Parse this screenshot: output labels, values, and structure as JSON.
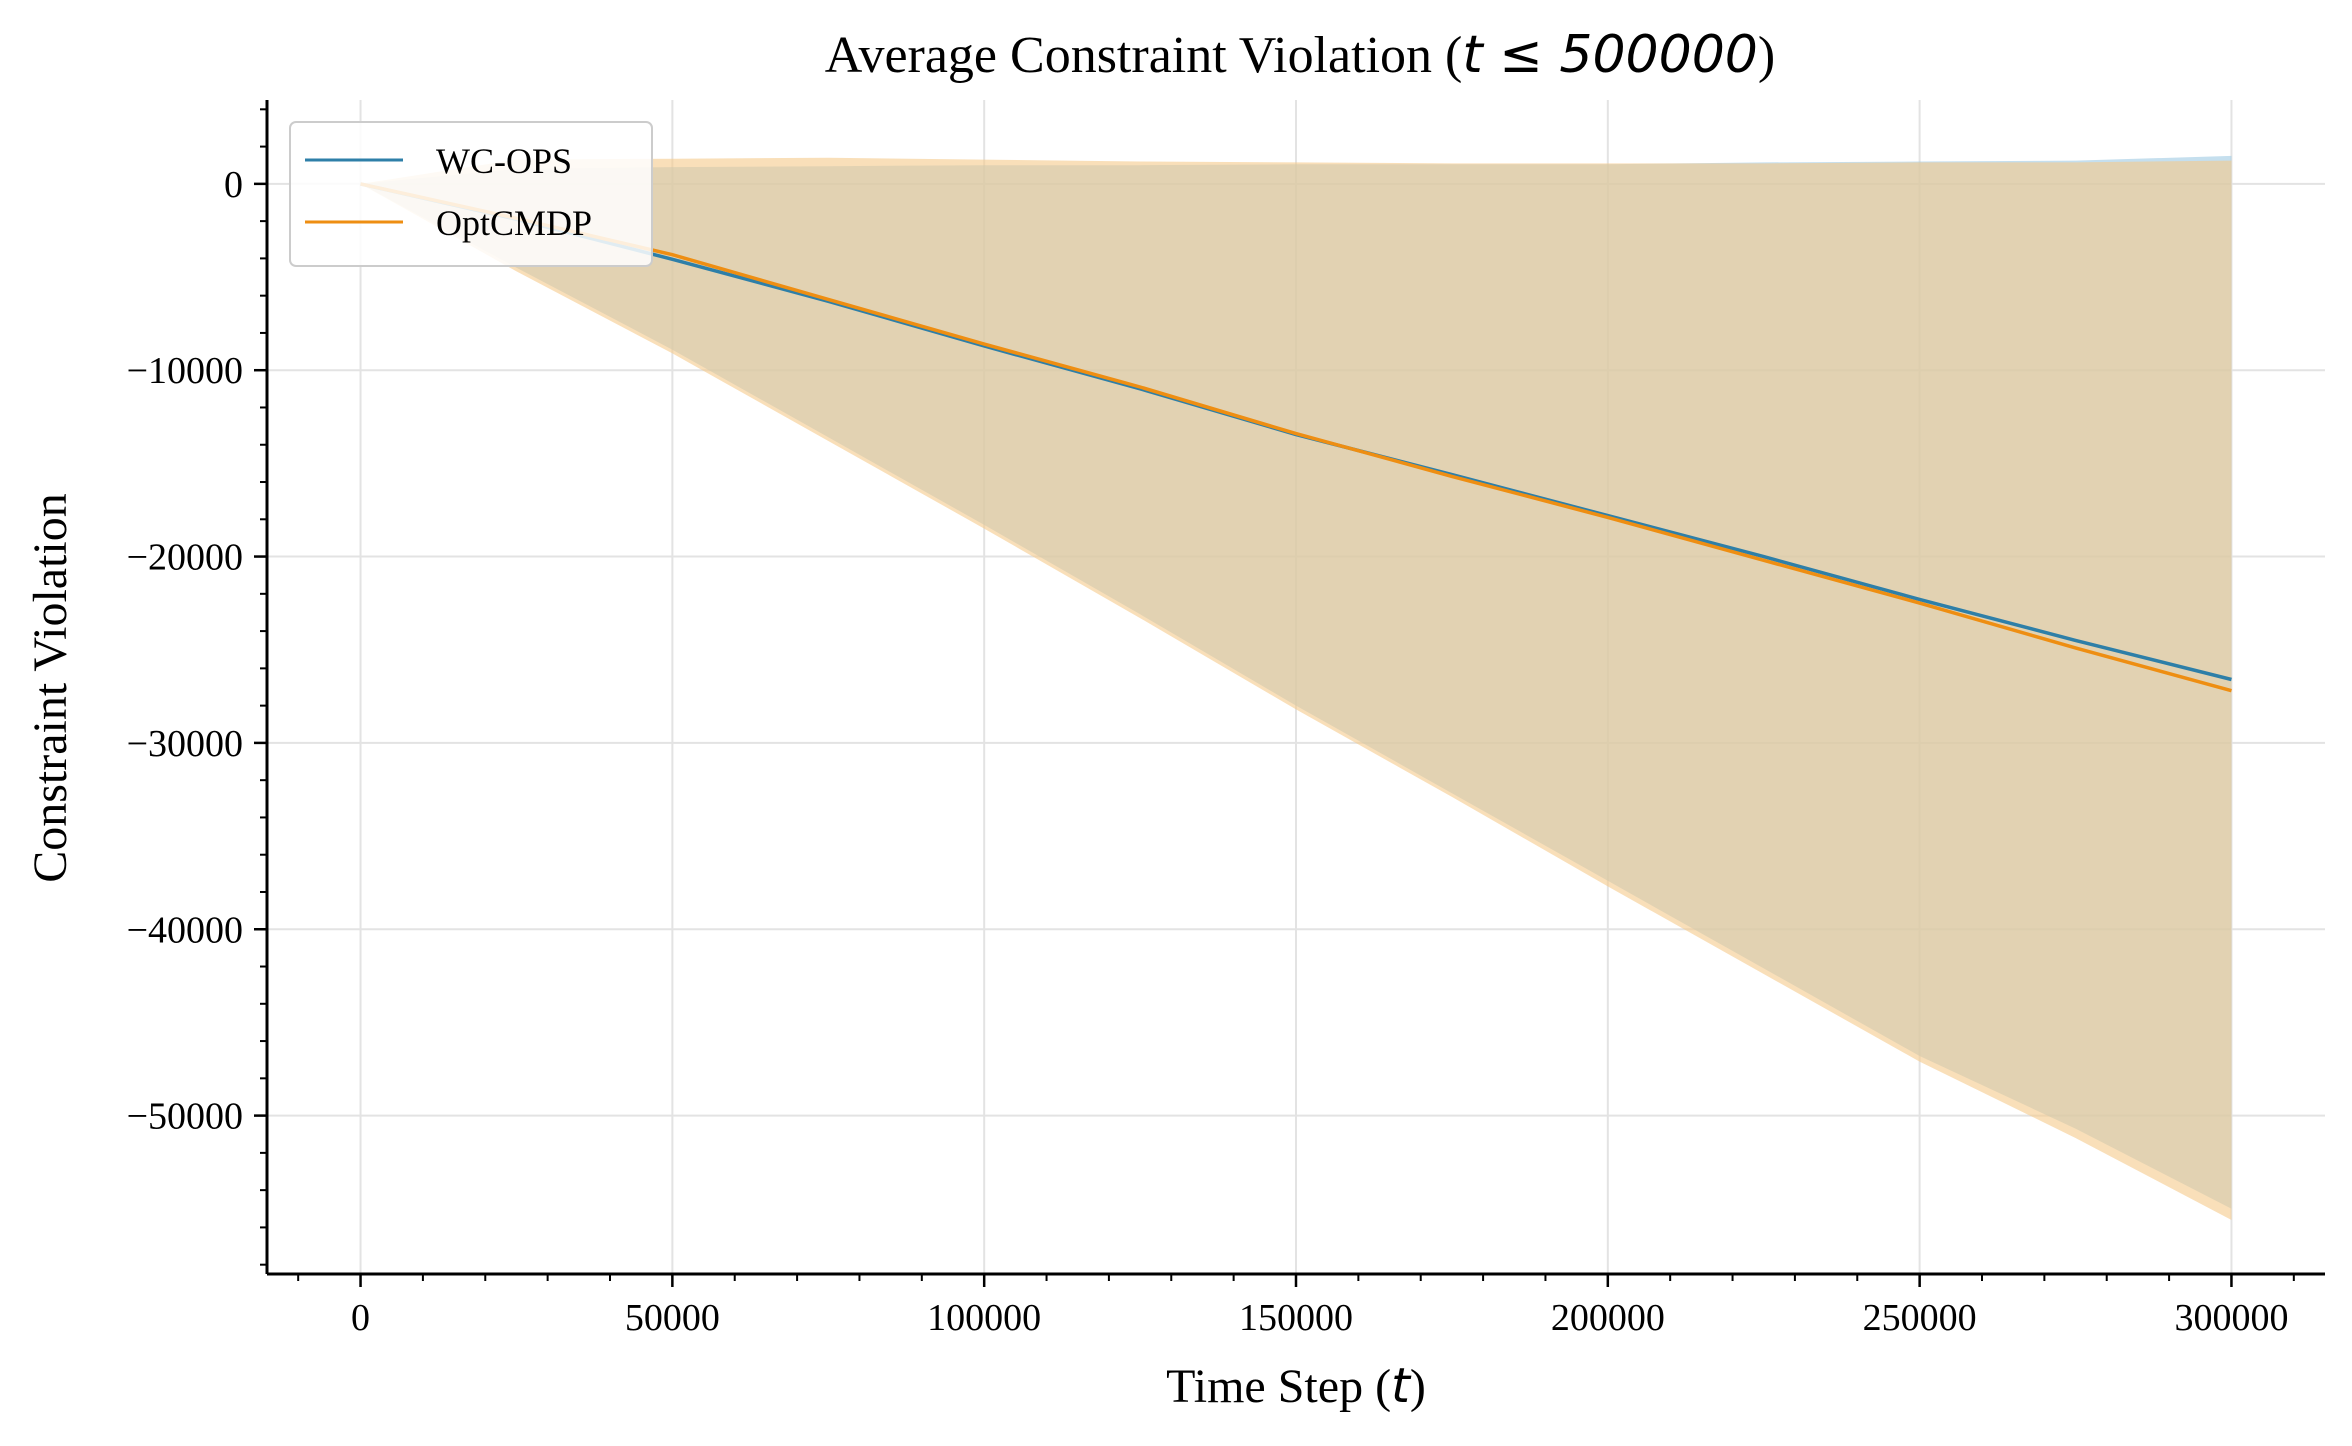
{
  "chart_data": {
    "type": "line",
    "title_prefix": "Average Constraint Violation (",
    "title_math": "t ≤ 500000",
    "title_suffix": ")",
    "xlabel_prefix": "Time Step (",
    "xlabel_math": "t",
    "xlabel_suffix": ")",
    "ylabel": "Constraint Violation",
    "xlim": [
      -15000,
      315000
    ],
    "ylim": [
      -58500,
      4500
    ],
    "xticks": [
      0,
      50000,
      100000,
      150000,
      200000,
      250000,
      300000
    ],
    "xtick_labels": [
      "0",
      "50000",
      "100000",
      "150000",
      "200000",
      "250000",
      "300000"
    ],
    "yticks": [
      0,
      -10000,
      -20000,
      -30000,
      -40000,
      -50000
    ],
    "ytick_labels": [
      "0",
      "−10000",
      "−20000",
      "−30000",
      "−40000",
      "−50000"
    ],
    "grid": true,
    "legend_position": "top-left",
    "series": [
      {
        "name": "WC-OPS",
        "color": "#2e7fa8",
        "band_color": "#9ec9e2",
        "x": [
          0,
          25000,
          50000,
          75000,
          100000,
          125000,
          150000,
          175000,
          200000,
          225000,
          250000,
          275000,
          300000
        ],
        "mean": [
          0,
          -1900,
          -4050,
          -6300,
          -8700,
          -11000,
          -13450,
          -15600,
          -17800,
          -20000,
          -22300,
          -24500,
          -26600
        ],
        "upper": [
          0,
          800,
          900,
          950,
          1000,
          1000,
          1050,
          1050,
          1050,
          1150,
          1200,
          1250,
          1500
        ],
        "lower": [
          0,
          -4500,
          -8900,
          -13600,
          -18300,
          -23100,
          -28000,
          -32700,
          -37400,
          -42100,
          -46800,
          -50700,
          -55000
        ]
      },
      {
        "name": "OptCMDP",
        "color": "#ee8e12",
        "band_color": "#f5c98b",
        "x": [
          0,
          25000,
          50000,
          75000,
          100000,
          125000,
          150000,
          175000,
          200000,
          225000,
          250000,
          275000,
          300000
        ],
        "mean": [
          0,
          -1850,
          -3800,
          -6200,
          -8600,
          -10900,
          -13400,
          -15700,
          -17900,
          -20200,
          -22500,
          -24900,
          -27200
        ],
        "upper": [
          0,
          1300,
          1350,
          1400,
          1300,
          1200,
          1150,
          1100,
          1100,
          1100,
          1150,
          1150,
          1250
        ],
        "lower": [
          0,
          -4700,
          -9100,
          -13800,
          -18500,
          -23300,
          -28200,
          -32900,
          -37700,
          -42400,
          -47100,
          -51200,
          -55600
        ]
      }
    ]
  }
}
